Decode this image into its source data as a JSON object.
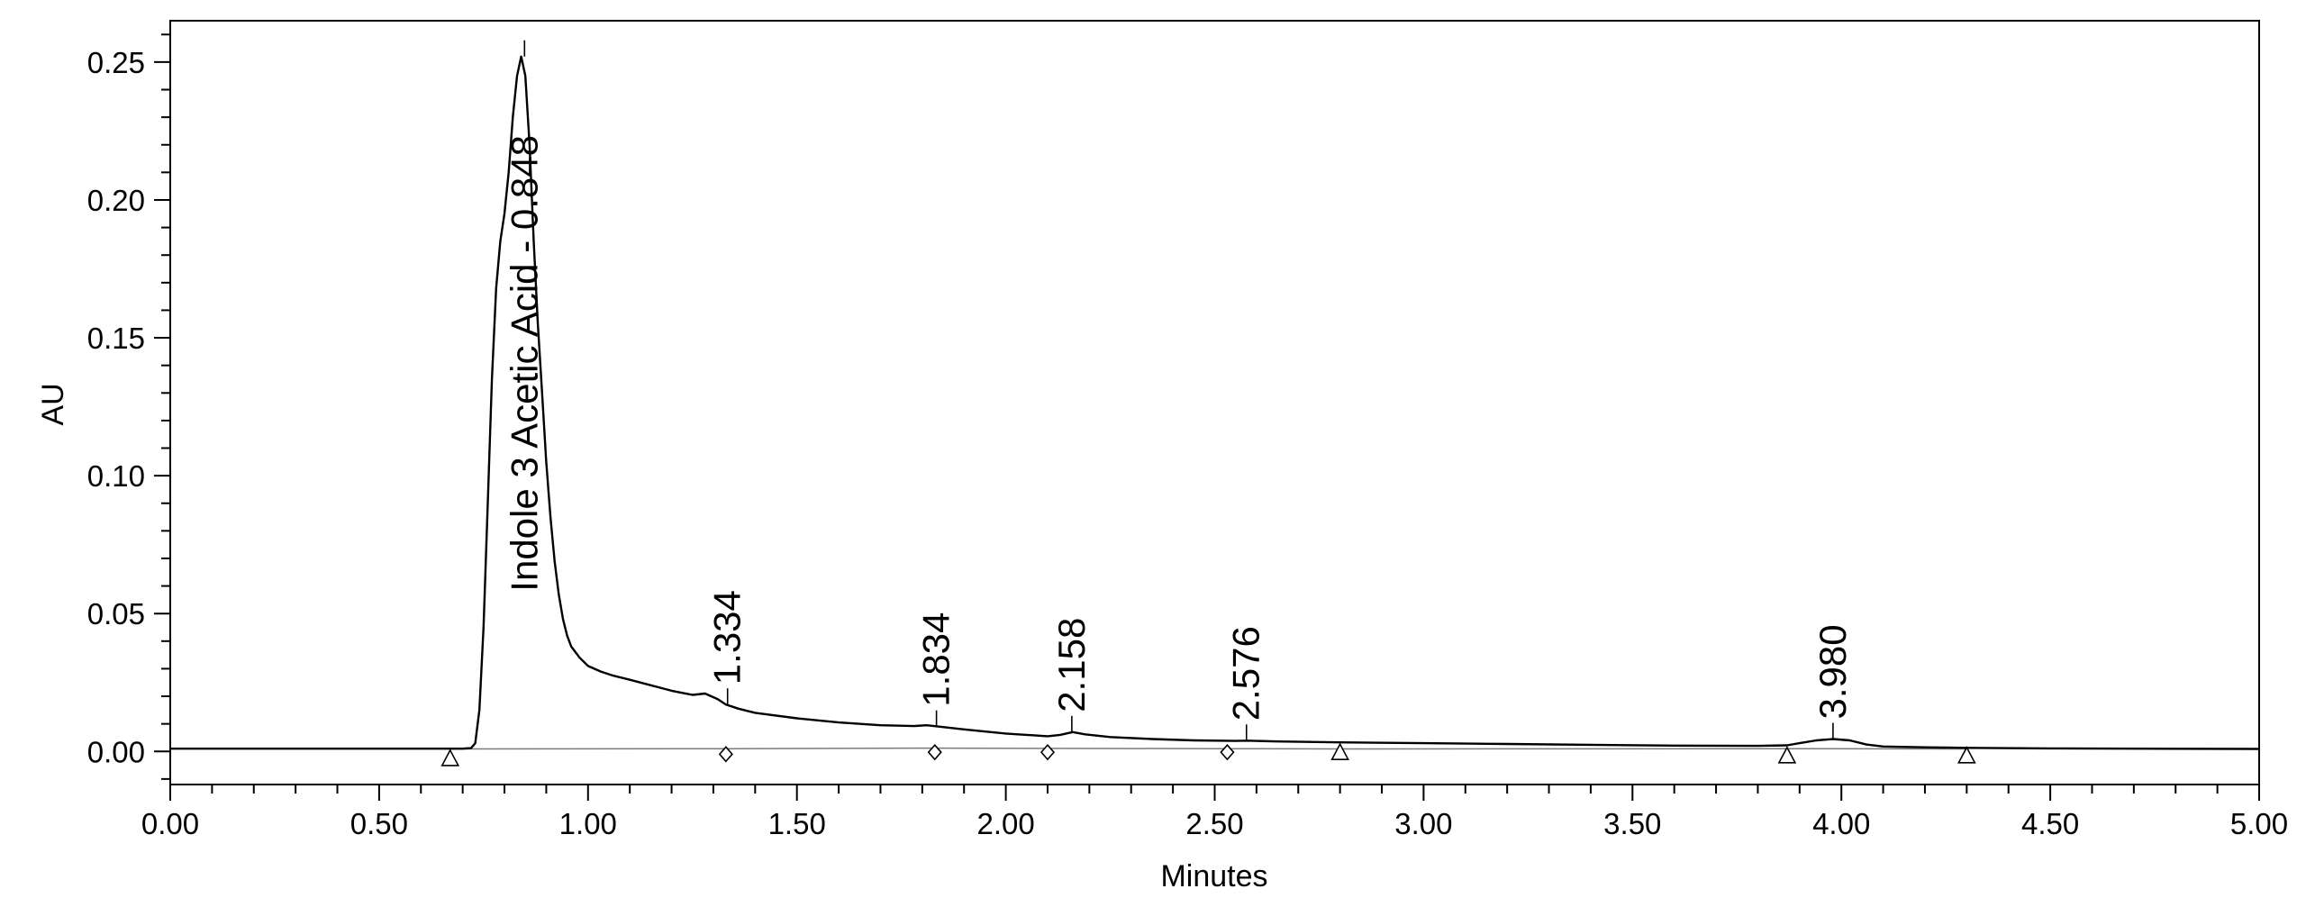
{
  "chart_data": {
    "type": "line",
    "xlabel": "Minutes",
    "ylabel": "AU",
    "xlim": [
      0.0,
      5.0
    ],
    "ylim": [
      -0.012,
      0.265
    ],
    "x_ticks": [
      0.0,
      0.5,
      1.0,
      1.5,
      2.0,
      2.5,
      3.0,
      3.5,
      4.0,
      4.5,
      5.0
    ],
    "x_tick_labels": [
      "0.00",
      "0.50",
      "1.00",
      "1.50",
      "2.00",
      "2.50",
      "3.00",
      "3.50",
      "4.00",
      "4.50",
      "5.00"
    ],
    "x_minor_step": 0.1,
    "y_ticks": [
      0.0,
      0.05,
      0.1,
      0.15,
      0.2,
      0.25
    ],
    "y_tick_labels": [
      "0.00",
      "0.05",
      "0.10",
      "0.15",
      "0.20",
      "0.25"
    ],
    "y_minor_step": 0.01,
    "grid": false,
    "series": [
      {
        "x": [
          0.0,
          0.6,
          0.7,
          0.72,
          0.73,
          0.74,
          0.75,
          0.76,
          0.77,
          0.78,
          0.79,
          0.8,
          0.81,
          0.82,
          0.83,
          0.84,
          0.85,
          0.86,
          0.87,
          0.88,
          0.89,
          0.9,
          0.91,
          0.92,
          0.93,
          0.94,
          0.95,
          0.96,
          0.98,
          1.0,
          1.03,
          1.06,
          1.1,
          1.15,
          1.2,
          1.25,
          1.28,
          1.31,
          1.33,
          1.36,
          1.4,
          1.5,
          1.6,
          1.7,
          1.78,
          1.81,
          1.84,
          1.9,
          2.0,
          2.05,
          2.1,
          2.13,
          2.16,
          2.19,
          2.25,
          2.35,
          2.45,
          2.55,
          2.58,
          2.65,
          2.8,
          3.0,
          3.2,
          3.4,
          3.6,
          3.8,
          3.87,
          3.9,
          3.94,
          3.98,
          4.02,
          4.06,
          4.1,
          4.2,
          4.3,
          4.5,
          4.7,
          5.0
        ],
        "y": [
          0.001,
          0.001,
          0.001,
          0.0012,
          0.003,
          0.015,
          0.045,
          0.09,
          0.135,
          0.168,
          0.185,
          0.195,
          0.21,
          0.23,
          0.245,
          0.252,
          0.245,
          0.22,
          0.185,
          0.155,
          0.13,
          0.105,
          0.085,
          0.069,
          0.057,
          0.048,
          0.042,
          0.038,
          0.034,
          0.031,
          0.029,
          0.0275,
          0.026,
          0.024,
          0.022,
          0.0205,
          0.021,
          0.019,
          0.017,
          0.0155,
          0.014,
          0.012,
          0.0105,
          0.0095,
          0.0092,
          0.0095,
          0.009,
          0.008,
          0.0065,
          0.006,
          0.0055,
          0.006,
          0.007,
          0.0062,
          0.0052,
          0.0045,
          0.004,
          0.0038,
          0.0039,
          0.0036,
          0.0033,
          0.003,
          0.0027,
          0.0024,
          0.0021,
          0.002,
          0.0022,
          0.003,
          0.004,
          0.0045,
          0.004,
          0.0025,
          0.0018,
          0.0015,
          0.0013,
          0.0011,
          0.001,
          0.0009
        ]
      }
    ],
    "baseline": {
      "x": [
        0.67,
        1.33,
        1.83,
        2.1,
        2.53,
        2.8,
        3.87,
        4.3
      ],
      "y": [
        0.0009,
        0.001,
        0.0012,
        0.0011,
        0.001,
        0.0009,
        0.001,
        0.0009
      ]
    },
    "peak_labels": [
      {
        "text": "Indole 3 Acetic Acid - 0.848",
        "x": 0.848,
        "y": 0.252
      },
      {
        "text": "1.334",
        "x": 1.334,
        "y": 0.017
      },
      {
        "text": "1.834",
        "x": 1.834,
        "y": 0.009
      },
      {
        "text": "2.158",
        "x": 2.158,
        "y": 0.007
      },
      {
        "text": "2.576",
        "x": 2.576,
        "y": 0.0039
      },
      {
        "text": "3.980",
        "x": 3.98,
        "y": 0.0045
      }
    ],
    "markers": [
      {
        "x": 0.67,
        "y": -0.0025,
        "shape": "triangle"
      },
      {
        "x": 1.33,
        "y": -0.001,
        "shape": "diamond"
      },
      {
        "x": 1.83,
        "y": -0.0003,
        "shape": "diamond"
      },
      {
        "x": 2.1,
        "y": -0.0003,
        "shape": "diamond"
      },
      {
        "x": 2.53,
        "y": -0.0003,
        "shape": "diamond"
      },
      {
        "x": 2.8,
        "y": -0.0003,
        "shape": "triangle"
      },
      {
        "x": 3.87,
        "y": -0.0015,
        "shape": "triangle"
      },
      {
        "x": 4.3,
        "y": -0.0015,
        "shape": "triangle"
      }
    ],
    "colors": {
      "trace": "#000000",
      "baseline": "#7a7a7a",
      "axes": "#000000"
    }
  }
}
